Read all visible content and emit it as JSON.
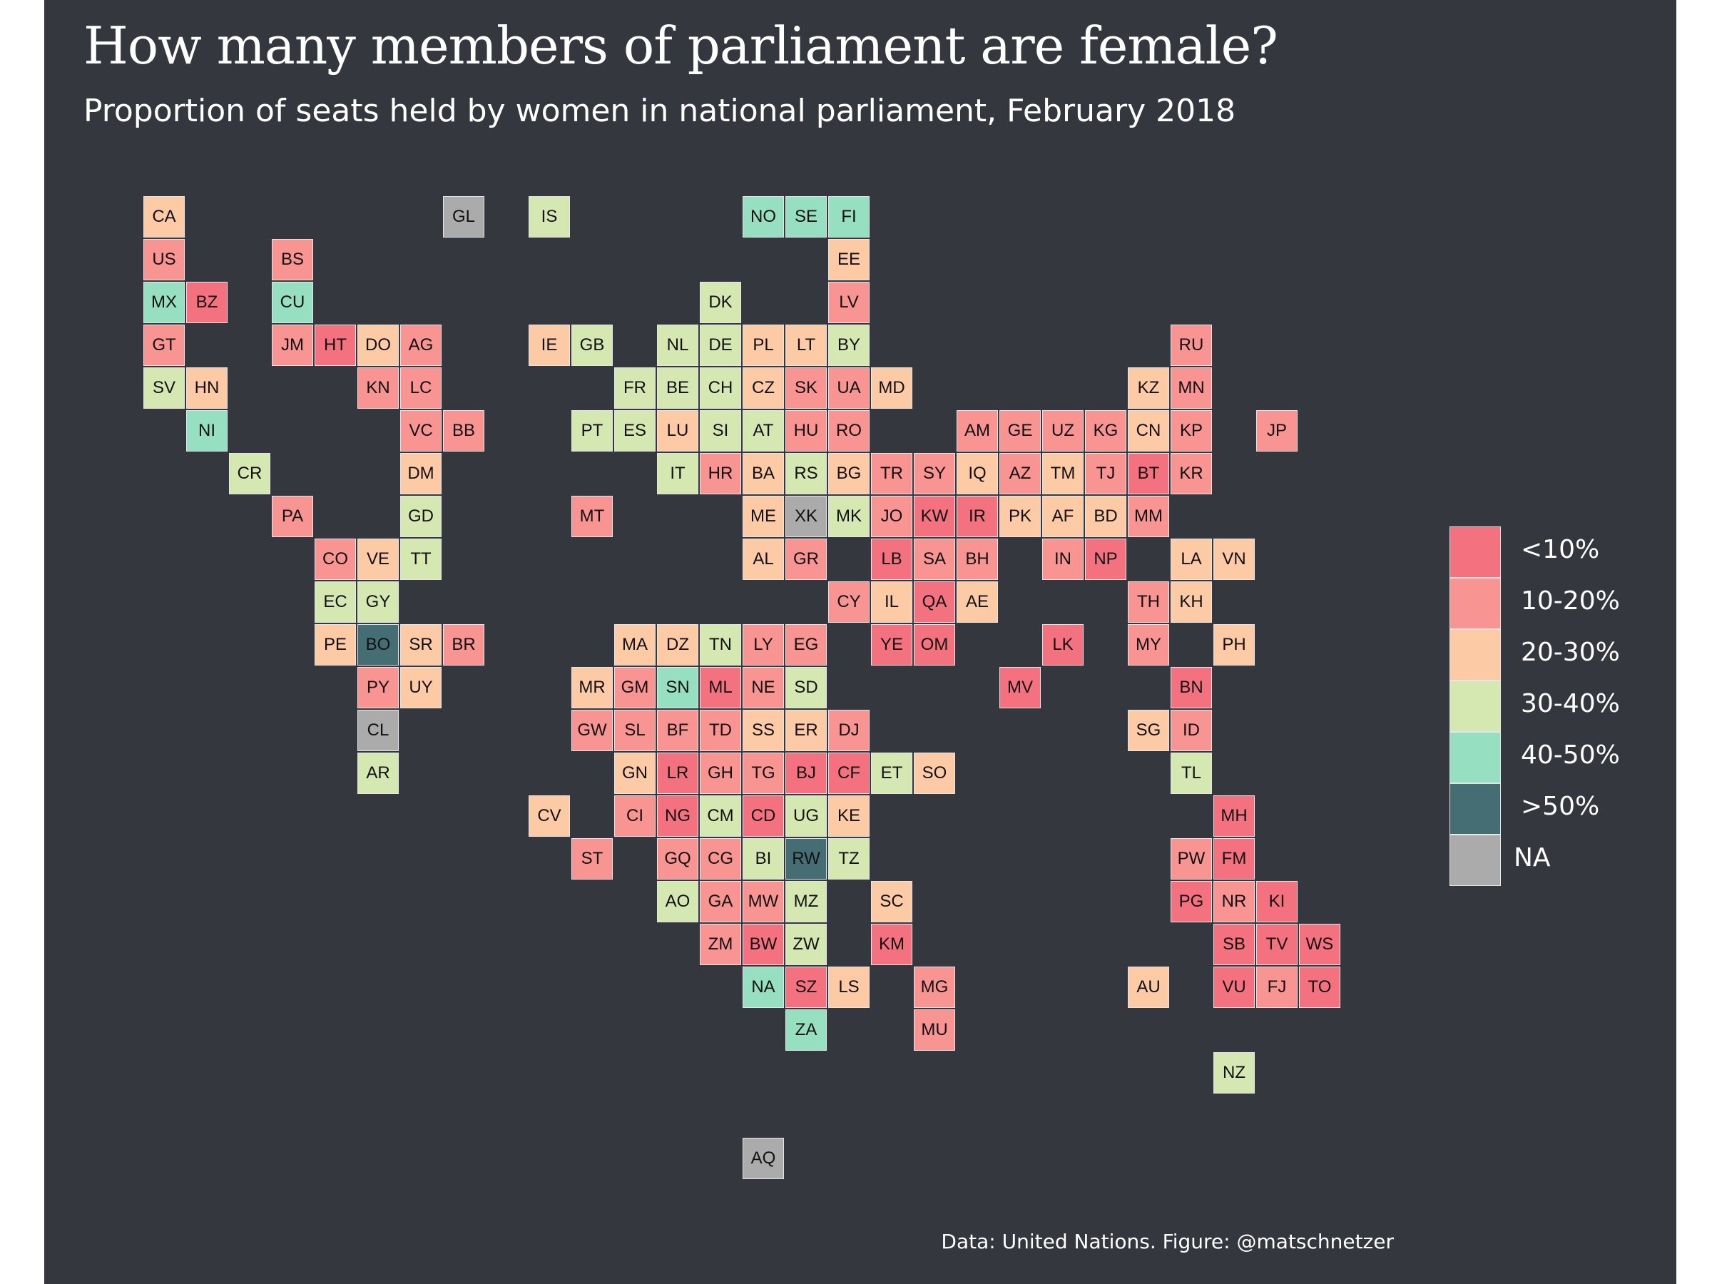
{
  "title": "How many members of parliament are female?",
  "subtitle": "Proportion of seats held by women in national parliament, February 2018",
  "caption": "Data: United Nations. Figure: @matschnetzer",
  "legend": [
    {
      "label": "<10%",
      "color": "#f4727f"
    },
    {
      "label": "10-20%",
      "color": "#f89491"
    },
    {
      "label": "20-30%",
      "color": "#fccaa5"
    },
    {
      "label": "30-40%",
      "color": "#d5e8b1"
    },
    {
      "label": "40-50%",
      "color": "#97dfc1"
    },
    {
      "label": ">50%",
      "color": "#456e74"
    },
    {
      "label": "NA",
      "color": "#ababab"
    }
  ],
  "countries": [
    {
      "code": "CA",
      "col": 0,
      "row": 0,
      "cat": 2
    },
    {
      "code": "GL",
      "col": 7,
      "row": 0,
      "cat": 6
    },
    {
      "code": "IS",
      "col": 9,
      "row": 0,
      "cat": 3
    },
    {
      "code": "NO",
      "col": 14,
      "row": 0,
      "cat": 4
    },
    {
      "code": "SE",
      "col": 15,
      "row": 0,
      "cat": 4
    },
    {
      "code": "FI",
      "col": 16,
      "row": 0,
      "cat": 4
    },
    {
      "code": "US",
      "col": 0,
      "row": 1,
      "cat": 1
    },
    {
      "code": "BS",
      "col": 3,
      "row": 1,
      "cat": 1
    },
    {
      "code": "EE",
      "col": 16,
      "row": 1,
      "cat": 2
    },
    {
      "code": "MX",
      "col": 0,
      "row": 2,
      "cat": 4
    },
    {
      "code": "BZ",
      "col": 1,
      "row": 2,
      "cat": 0
    },
    {
      "code": "CU",
      "col": 3,
      "row": 2,
      "cat": 4
    },
    {
      "code": "DK",
      "col": 13,
      "row": 2,
      "cat": 3
    },
    {
      "code": "LV",
      "col": 16,
      "row": 2,
      "cat": 1
    },
    {
      "code": "GT",
      "col": 0,
      "row": 3,
      "cat": 1
    },
    {
      "code": "JM",
      "col": 3,
      "row": 3,
      "cat": 1
    },
    {
      "code": "HT",
      "col": 4,
      "row": 3,
      "cat": 0
    },
    {
      "code": "DO",
      "col": 5,
      "row": 3,
      "cat": 2
    },
    {
      "code": "AG",
      "col": 6,
      "row": 3,
      "cat": 1
    },
    {
      "code": "IE",
      "col": 9,
      "row": 3,
      "cat": 2
    },
    {
      "code": "GB",
      "col": 10,
      "row": 3,
      "cat": 3
    },
    {
      "code": "NL",
      "col": 12,
      "row": 3,
      "cat": 3
    },
    {
      "code": "DE",
      "col": 13,
      "row": 3,
      "cat": 3
    },
    {
      "code": "PL",
      "col": 14,
      "row": 3,
      "cat": 2
    },
    {
      "code": "LT",
      "col": 15,
      "row": 3,
      "cat": 2
    },
    {
      "code": "BY",
      "col": 16,
      "row": 3,
      "cat": 3
    },
    {
      "code": "RU",
      "col": 24,
      "row": 3,
      "cat": 1
    },
    {
      "code": "SV",
      "col": 0,
      "row": 4,
      "cat": 3
    },
    {
      "code": "HN",
      "col": 1,
      "row": 4,
      "cat": 2
    },
    {
      "code": "KN",
      "col": 5,
      "row": 4,
      "cat": 1
    },
    {
      "code": "LC",
      "col": 6,
      "row": 4,
      "cat": 1
    },
    {
      "code": "FR",
      "col": 11,
      "row": 4,
      "cat": 3
    },
    {
      "code": "BE",
      "col": 12,
      "row": 4,
      "cat": 3
    },
    {
      "code": "CH",
      "col": 13,
      "row": 4,
      "cat": 3
    },
    {
      "code": "CZ",
      "col": 14,
      "row": 4,
      "cat": 2
    },
    {
      "code": "SK",
      "col": 15,
      "row": 4,
      "cat": 1
    },
    {
      "code": "UA",
      "col": 16,
      "row": 4,
      "cat": 1
    },
    {
      "code": "MD",
      "col": 17,
      "row": 4,
      "cat": 2
    },
    {
      "code": "KZ",
      "col": 23,
      "row": 4,
      "cat": 2
    },
    {
      "code": "MN",
      "col": 24,
      "row": 4,
      "cat": 1
    },
    {
      "code": "NI",
      "col": 1,
      "row": 5,
      "cat": 4
    },
    {
      "code": "VC",
      "col": 6,
      "row": 5,
      "cat": 1
    },
    {
      "code": "BB",
      "col": 7,
      "row": 5,
      "cat": 1
    },
    {
      "code": "PT",
      "col": 10,
      "row": 5,
      "cat": 3
    },
    {
      "code": "ES",
      "col": 11,
      "row": 5,
      "cat": 3
    },
    {
      "code": "LU",
      "col": 12,
      "row": 5,
      "cat": 2
    },
    {
      "code": "SI",
      "col": 13,
      "row": 5,
      "cat": 3
    },
    {
      "code": "AT",
      "col": 14,
      "row": 5,
      "cat": 3
    },
    {
      "code": "HU",
      "col": 15,
      "row": 5,
      "cat": 1
    },
    {
      "code": "RO",
      "col": 16,
      "row": 5,
      "cat": 1
    },
    {
      "code": "AM",
      "col": 19,
      "row": 5,
      "cat": 1
    },
    {
      "code": "GE",
      "col": 20,
      "row": 5,
      "cat": 1
    },
    {
      "code": "UZ",
      "col": 21,
      "row": 5,
      "cat": 1
    },
    {
      "code": "KG",
      "col": 22,
      "row": 5,
      "cat": 1
    },
    {
      "code": "CN",
      "col": 23,
      "row": 5,
      "cat": 2
    },
    {
      "code": "KP",
      "col": 24,
      "row": 5,
      "cat": 1
    },
    {
      "code": "JP",
      "col": 26,
      "row": 5,
      "cat": 1
    },
    {
      "code": "CR",
      "col": 2,
      "row": 6,
      "cat": 3
    },
    {
      "code": "DM",
      "col": 6,
      "row": 6,
      "cat": 2
    },
    {
      "code": "IT",
      "col": 12,
      "row": 6,
      "cat": 3
    },
    {
      "code": "HR",
      "col": 13,
      "row": 6,
      "cat": 1
    },
    {
      "code": "BA",
      "col": 14,
      "row": 6,
      "cat": 2
    },
    {
      "code": "RS",
      "col": 15,
      "row": 6,
      "cat": 3
    },
    {
      "code": "BG",
      "col": 16,
      "row": 6,
      "cat": 2
    },
    {
      "code": "TR",
      "col": 17,
      "row": 6,
      "cat": 1
    },
    {
      "code": "SY",
      "col": 18,
      "row": 6,
      "cat": 1
    },
    {
      "code": "IQ",
      "col": 19,
      "row": 6,
      "cat": 2
    },
    {
      "code": "AZ",
      "col": 20,
      "row": 6,
      "cat": 1
    },
    {
      "code": "TM",
      "col": 21,
      "row": 6,
      "cat": 2
    },
    {
      "code": "TJ",
      "col": 22,
      "row": 6,
      "cat": 1
    },
    {
      "code": "BT",
      "col": 23,
      "row": 6,
      "cat": 0
    },
    {
      "code": "KR",
      "col": 24,
      "row": 6,
      "cat": 1
    },
    {
      "code": "PA",
      "col": 3,
      "row": 7,
      "cat": 1
    },
    {
      "code": "GD",
      "col": 6,
      "row": 7,
      "cat": 3
    },
    {
      "code": "MT",
      "col": 10,
      "row": 7,
      "cat": 1
    },
    {
      "code": "ME",
      "col": 14,
      "row": 7,
      "cat": 2
    },
    {
      "code": "XK",
      "col": 15,
      "row": 7,
      "cat": 6
    },
    {
      "code": "MK",
      "col": 16,
      "row": 7,
      "cat": 3
    },
    {
      "code": "JO",
      "col": 17,
      "row": 7,
      "cat": 1
    },
    {
      "code": "KW",
      "col": 18,
      "row": 7,
      "cat": 0
    },
    {
      "code": "IR",
      "col": 19,
      "row": 7,
      "cat": 0
    },
    {
      "code": "PK",
      "col": 20,
      "row": 7,
      "cat": 2
    },
    {
      "code": "AF",
      "col": 21,
      "row": 7,
      "cat": 2
    },
    {
      "code": "BD",
      "col": 22,
      "row": 7,
      "cat": 2
    },
    {
      "code": "MM",
      "col": 23,
      "row": 7,
      "cat": 1
    },
    {
      "code": "CO",
      "col": 4,
      "row": 8,
      "cat": 1
    },
    {
      "code": "VE",
      "col": 5,
      "row": 8,
      "cat": 2
    },
    {
      "code": "TT",
      "col": 6,
      "row": 8,
      "cat": 3
    },
    {
      "code": "AL",
      "col": 14,
      "row": 8,
      "cat": 2
    },
    {
      "code": "GR",
      "col": 15,
      "row": 8,
      "cat": 1
    },
    {
      "code": "LB",
      "col": 17,
      "row": 8,
      "cat": 0
    },
    {
      "code": "SA",
      "col": 18,
      "row": 8,
      "cat": 1
    },
    {
      "code": "BH",
      "col": 19,
      "row": 8,
      "cat": 1
    },
    {
      "code": "IN",
      "col": 21,
      "row": 8,
      "cat": 1
    },
    {
      "code": "NP",
      "col": 22,
      "row": 8,
      "cat": 0
    },
    {
      "code": "LA",
      "col": 24,
      "row": 8,
      "cat": 2
    },
    {
      "code": "VN",
      "col": 25,
      "row": 8,
      "cat": 2
    },
    {
      "code": "EC",
      "col": 4,
      "row": 9,
      "cat": 3
    },
    {
      "code": "GY",
      "col": 5,
      "row": 9,
      "cat": 3
    },
    {
      "code": "CY",
      "col": 16,
      "row": 9,
      "cat": 1
    },
    {
      "code": "IL",
      "col": 17,
      "row": 9,
      "cat": 2
    },
    {
      "code": "QA",
      "col": 18,
      "row": 9,
      "cat": 0
    },
    {
      "code": "AE",
      "col": 19,
      "row": 9,
      "cat": 2
    },
    {
      "code": "TH",
      "col": 23,
      "row": 9,
      "cat": 1
    },
    {
      "code": "KH",
      "col": 24,
      "row": 9,
      "cat": 2
    },
    {
      "code": "PE",
      "col": 4,
      "row": 10,
      "cat": 2
    },
    {
      "code": "BO",
      "col": 5,
      "row": 10,
      "cat": 5
    },
    {
      "code": "SR",
      "col": 6,
      "row": 10,
      "cat": 2
    },
    {
      "code": "BR",
      "col": 7,
      "row": 10,
      "cat": 1
    },
    {
      "code": "MA",
      "col": 11,
      "row": 10,
      "cat": 2
    },
    {
      "code": "DZ",
      "col": 12,
      "row": 10,
      "cat": 2
    },
    {
      "code": "TN",
      "col": 13,
      "row": 10,
      "cat": 3
    },
    {
      "code": "LY",
      "col": 14,
      "row": 10,
      "cat": 1
    },
    {
      "code": "EG",
      "col": 15,
      "row": 10,
      "cat": 1
    },
    {
      "code": "YE",
      "col": 17,
      "row": 10,
      "cat": 0
    },
    {
      "code": "OM",
      "col": 18,
      "row": 10,
      "cat": 0
    },
    {
      "code": "LK",
      "col": 21,
      "row": 10,
      "cat": 0
    },
    {
      "code": "MY",
      "col": 23,
      "row": 10,
      "cat": 1
    },
    {
      "code": "PH",
      "col": 25,
      "row": 10,
      "cat": 2
    },
    {
      "code": "PY",
      "col": 5,
      "row": 11,
      "cat": 1
    },
    {
      "code": "UY",
      "col": 6,
      "row": 11,
      "cat": 2
    },
    {
      "code": "MR",
      "col": 10,
      "row": 11,
      "cat": 2
    },
    {
      "code": "GM",
      "col": 11,
      "row": 11,
      "cat": 1
    },
    {
      "code": "SN",
      "col": 12,
      "row": 11,
      "cat": 4
    },
    {
      "code": "ML",
      "col": 13,
      "row": 11,
      "cat": 0
    },
    {
      "code": "NE",
      "col": 14,
      "row": 11,
      "cat": 1
    },
    {
      "code": "SD",
      "col": 15,
      "row": 11,
      "cat": 3
    },
    {
      "code": "MV",
      "col": 20,
      "row": 11,
      "cat": 0
    },
    {
      "code": "BN",
      "col": 24,
      "row": 11,
      "cat": 0
    },
    {
      "code": "CL",
      "col": 5,
      "row": 12,
      "cat": 6
    },
    {
      "code": "GW",
      "col": 10,
      "row": 12,
      "cat": 1
    },
    {
      "code": "SL",
      "col": 11,
      "row": 12,
      "cat": 1
    },
    {
      "code": "BF",
      "col": 12,
      "row": 12,
      "cat": 1
    },
    {
      "code": "TD",
      "col": 13,
      "row": 12,
      "cat": 1
    },
    {
      "code": "SS",
      "col": 14,
      "row": 12,
      "cat": 2
    },
    {
      "code": "ER",
      "col": 15,
      "row": 12,
      "cat": 2
    },
    {
      "code": "DJ",
      "col": 16,
      "row": 12,
      "cat": 1
    },
    {
      "code": "SG",
      "col": 23,
      "row": 12,
      "cat": 2
    },
    {
      "code": "ID",
      "col": 24,
      "row": 12,
      "cat": 1
    },
    {
      "code": "AR",
      "col": 5,
      "row": 13,
      "cat": 3
    },
    {
      "code": "GN",
      "col": 11,
      "row": 13,
      "cat": 2
    },
    {
      "code": "LR",
      "col": 12,
      "row": 13,
      "cat": 0
    },
    {
      "code": "GH",
      "col": 13,
      "row": 13,
      "cat": 1
    },
    {
      "code": "TG",
      "col": 14,
      "row": 13,
      "cat": 1
    },
    {
      "code": "BJ",
      "col": 15,
      "row": 13,
      "cat": 0
    },
    {
      "code": "CF",
      "col": 16,
      "row": 13,
      "cat": 0
    },
    {
      "code": "ET",
      "col": 17,
      "row": 13,
      "cat": 3
    },
    {
      "code": "SO",
      "col": 18,
      "row": 13,
      "cat": 2
    },
    {
      "code": "TL",
      "col": 24,
      "row": 13,
      "cat": 3
    },
    {
      "code": "CV",
      "col": 9,
      "row": 14,
      "cat": 2
    },
    {
      "code": "CI",
      "col": 11,
      "row": 14,
      "cat": 1
    },
    {
      "code": "NG",
      "col": 12,
      "row": 14,
      "cat": 0
    },
    {
      "code": "CM",
      "col": 13,
      "row": 14,
      "cat": 3
    },
    {
      "code": "CD",
      "col": 14,
      "row": 14,
      "cat": 0
    },
    {
      "code": "UG",
      "col": 15,
      "row": 14,
      "cat": 3
    },
    {
      "code": "KE",
      "col": 16,
      "row": 14,
      "cat": 2
    },
    {
      "code": "MH",
      "col": 25,
      "row": 14,
      "cat": 0
    },
    {
      "code": "ST",
      "col": 10,
      "row": 15,
      "cat": 1
    },
    {
      "code": "GQ",
      "col": 12,
      "row": 15,
      "cat": 1
    },
    {
      "code": "CG",
      "col": 13,
      "row": 15,
      "cat": 1
    },
    {
      "code": "BI",
      "col": 14,
      "row": 15,
      "cat": 3
    },
    {
      "code": "RW",
      "col": 15,
      "row": 15,
      "cat": 5
    },
    {
      "code": "TZ",
      "col": 16,
      "row": 15,
      "cat": 3
    },
    {
      "code": "PW",
      "col": 24,
      "row": 15,
      "cat": 1
    },
    {
      "code": "FM",
      "col": 25,
      "row": 15,
      "cat": 0
    },
    {
      "code": "AO",
      "col": 12,
      "row": 16,
      "cat": 3
    },
    {
      "code": "GA",
      "col": 13,
      "row": 16,
      "cat": 1
    },
    {
      "code": "MW",
      "col": 14,
      "row": 16,
      "cat": 1
    },
    {
      "code": "MZ",
      "col": 15,
      "row": 16,
      "cat": 3
    },
    {
      "code": "SC",
      "col": 17,
      "row": 16,
      "cat": 2
    },
    {
      "code": "PG",
      "col": 24,
      "row": 16,
      "cat": 0
    },
    {
      "code": "NR",
      "col": 25,
      "row": 16,
      "cat": 1
    },
    {
      "code": "KI",
      "col": 26,
      "row": 16,
      "cat": 0
    },
    {
      "code": "ZM",
      "col": 13,
      "row": 17,
      "cat": 1
    },
    {
      "code": "BW",
      "col": 14,
      "row": 17,
      "cat": 0
    },
    {
      "code": "ZW",
      "col": 15,
      "row": 17,
      "cat": 3
    },
    {
      "code": "KM",
      "col": 17,
      "row": 17,
      "cat": 0
    },
    {
      "code": "SB",
      "col": 25,
      "row": 17,
      "cat": 0
    },
    {
      "code": "TV",
      "col": 26,
      "row": 17,
      "cat": 0
    },
    {
      "code": "WS",
      "col": 27,
      "row": 17,
      "cat": 0
    },
    {
      "code": "NA",
      "col": 14,
      "row": 18,
      "cat": 4
    },
    {
      "code": "SZ",
      "col": 15,
      "row": 18,
      "cat": 0
    },
    {
      "code": "LS",
      "col": 16,
      "row": 18,
      "cat": 2
    },
    {
      "code": "MG",
      "col": 18,
      "row": 18,
      "cat": 1
    },
    {
      "code": "AU",
      "col": 23,
      "row": 18,
      "cat": 2
    },
    {
      "code": "VU",
      "col": 25,
      "row": 18,
      "cat": 0
    },
    {
      "code": "FJ",
      "col": 26,
      "row": 18,
      "cat": 1
    },
    {
      "code": "TO",
      "col": 27,
      "row": 18,
      "cat": 0
    },
    {
      "code": "ZA",
      "col": 15,
      "row": 19,
      "cat": 4
    },
    {
      "code": "MU",
      "col": 18,
      "row": 19,
      "cat": 1
    },
    {
      "code": "NZ",
      "col": 25,
      "row": 20,
      "cat": 3
    },
    {
      "code": "AQ",
      "col": 14,
      "row": 22,
      "cat": 6
    }
  ]
}
